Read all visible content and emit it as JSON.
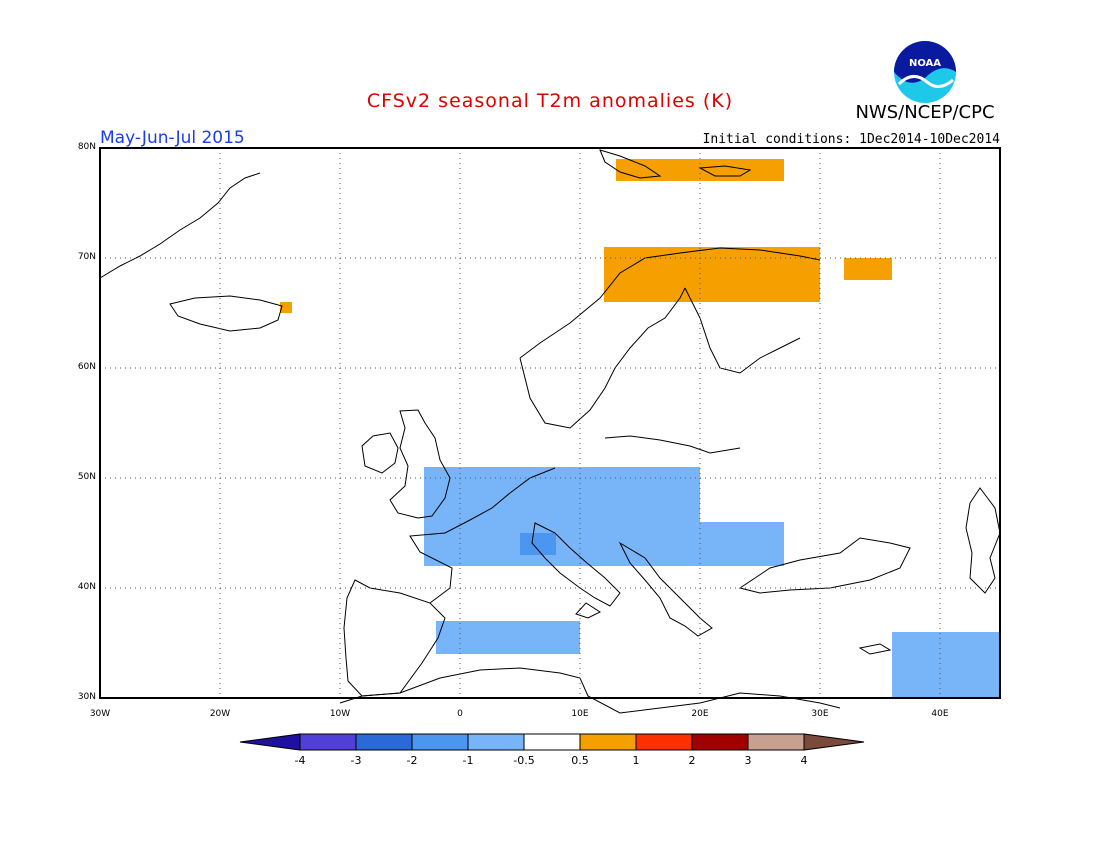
{
  "title": "CFSv2 seasonal T2m anomalies (K)",
  "period": "May-Jun-Jul 2015",
  "initial_conditions": "Initial conditions: 1Dec2014-10Dec2014",
  "agency": "NWS/NCEP/CPC",
  "logo": {
    "icon": "noaa-logo",
    "text": "NOAA"
  },
  "map": {
    "lon_range": [
      -30,
      45
    ],
    "lat_range": [
      30,
      80
    ],
    "lon_ticks": [
      "30W",
      "20W",
      "10W",
      "0",
      "10E",
      "20E",
      "30E",
      "40E"
    ],
    "lat_ticks": [
      "30N",
      "40N",
      "50N",
      "60N",
      "70N",
      "80N"
    ],
    "grid": true,
    "anomaly_regions": [
      {
        "category": "-1",
        "color": "#78b4f8",
        "region": "France / Germany / central Europe",
        "lon": [
          -3,
          20
        ],
        "lat": [
          42,
          51
        ]
      },
      {
        "category": "-1",
        "color": "#78b4f8",
        "region": "Balkans / Romania",
        "lon": [
          20,
          27
        ],
        "lat": [
          42,
          46
        ]
      },
      {
        "category": "-1",
        "color": "#78b4f8",
        "region": "Northern Algeria / Tunisia",
        "lon": [
          -2,
          10
        ],
        "lat": [
          34,
          37
        ]
      },
      {
        "category": "-1",
        "color": "#78b4f8",
        "region": "Middle East / Arabia",
        "lon": [
          36,
          45
        ],
        "lat": [
          30,
          36
        ]
      },
      {
        "category": "-2",
        "color": "#4a96f0",
        "region": "Southern France",
        "lon": [
          5,
          8
        ],
        "lat": [
          43,
          45
        ]
      },
      {
        "category": "0.5 to 1",
        "color": "#f5a000",
        "region": "Northern Norway coast",
        "lon": [
          12,
          30
        ],
        "lat": [
          66,
          71
        ]
      },
      {
        "category": "0.5 to 1",
        "color": "#f5a000",
        "region": "Svalbard",
        "lon": [
          13,
          27
        ],
        "lat": [
          77,
          79
        ]
      },
      {
        "category": "0.5 to 1",
        "color": "#f5a000",
        "region": "Kola peninsula",
        "lon": [
          32,
          36
        ],
        "lat": [
          68,
          70
        ]
      },
      {
        "category": "0.5 to 1",
        "color": "#f5a000",
        "region": "Eastern Iceland",
        "lon": [
          -15,
          -14
        ],
        "lat": [
          65,
          66
        ]
      }
    ]
  },
  "colorbar": {
    "labels": [
      "-4",
      "-3",
      "-2",
      "-1",
      "-0.5",
      "0.5",
      "1",
      "2",
      "3",
      "4"
    ],
    "colors": [
      "#2010a0",
      "#5040d8",
      "#2a6ad8",
      "#4a96f0",
      "#78b4f8",
      "#ffffff",
      "#f5a000",
      "#ff3000",
      "#a00000",
      "#c8a090",
      "#7a4a3a"
    ]
  }
}
